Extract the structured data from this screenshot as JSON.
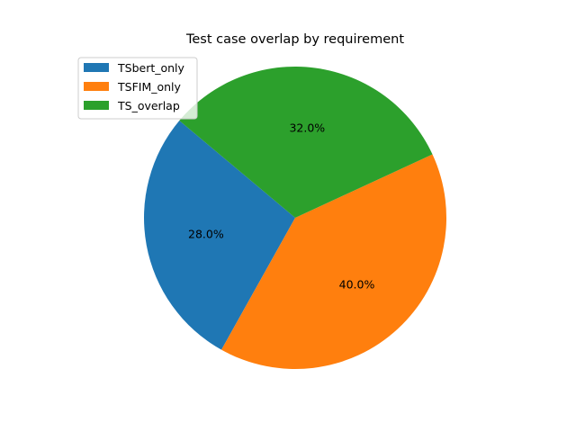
{
  "chart_data": {
    "type": "pie",
    "title": "Test case overlap by requirement",
    "labels": [
      "TSbert_only",
      "TSFIM_only",
      "TS_overlap"
    ],
    "values": [
      28.0,
      40.0,
      32.0
    ],
    "value_labels": [
      "28.0%",
      "40.0%",
      "32.0%"
    ],
    "colors": [
      "#1f77b4",
      "#ff7f0e",
      "#2ca02c"
    ],
    "start_angle_deg": 140,
    "direction": "counterclockwise",
    "legend_position": "upper-left"
  }
}
